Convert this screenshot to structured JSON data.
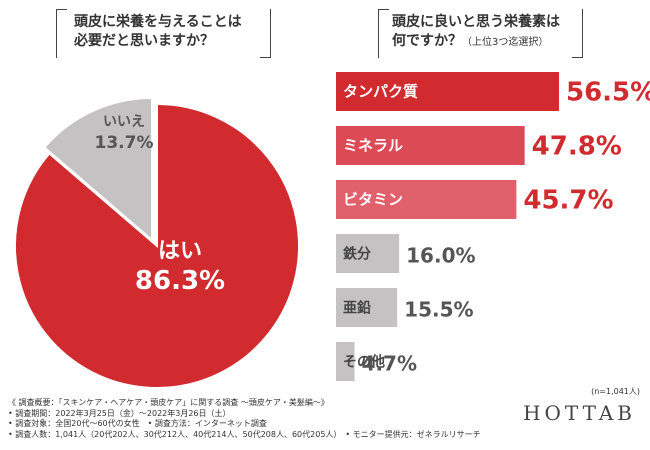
{
  "left_question": {
    "line1": "頭皮に栄養を与えることは",
    "line2": "必要だと思いますか？"
  },
  "right_question": {
    "line1": "頭皮に良いと思う栄養素は",
    "line2": "何ですか？",
    "line2_small": "（上位3つ迄選択）"
  },
  "chart_data": [
    {
      "type": "pie",
      "title": "頭皮に栄養を与えることは必要だと思いますか？",
      "slices": [
        {
          "label": "はい",
          "value": 86.3,
          "display": "86.3%",
          "color": "#d12a2f"
        },
        {
          "label": "いいえ",
          "value": 13.7,
          "display": "13.7%",
          "color": "#c4c2c2"
        }
      ]
    },
    {
      "type": "bar",
      "orientation": "horizontal",
      "title": "頭皮に良いと思う栄養素は何ですか？（上位3つ迄選択）",
      "categories": [
        "タンパク質",
        "ミネラル",
        "ビタミン",
        "鉄分",
        "亜鉛",
        "その他"
      ],
      "values": [
        56.5,
        47.8,
        45.7,
        16.0,
        15.5,
        4.7
      ],
      "labels": [
        "56.5%",
        "47.8%",
        "45.7%",
        "16.0%",
        "15.5%",
        "4.7%"
      ],
      "colors": [
        "#d12a2f",
        "#dc4a55",
        "#e0616c",
        "#c4c2c2",
        "#c4c2c2",
        "#c4c2c2"
      ],
      "label_colors": [
        "#d12a2f",
        "#d12a2f",
        "#d12a2f",
        "#555555",
        "#555555",
        "#555555"
      ]
    }
  ],
  "sample_note": "(n=1,041人)",
  "notes": [
    "《 調査概要：「スキンケア・ヘアケア・頭皮ケア」に関する調査 ～頭皮ケア・美髪編～》",
    "• 調査期間：2022年3月25日（金）～2022年3月26日（土）",
    "• 調査対象：全国20代～60代の女性　• 調査方法：インターネット調査",
    "• 調査人数：1,041人（20代202人、30代212人、40代214人、50代208人、60代205人）　• モニター提供元：ゼネラルリサーチ"
  ],
  "logo": "HOTTAB"
}
